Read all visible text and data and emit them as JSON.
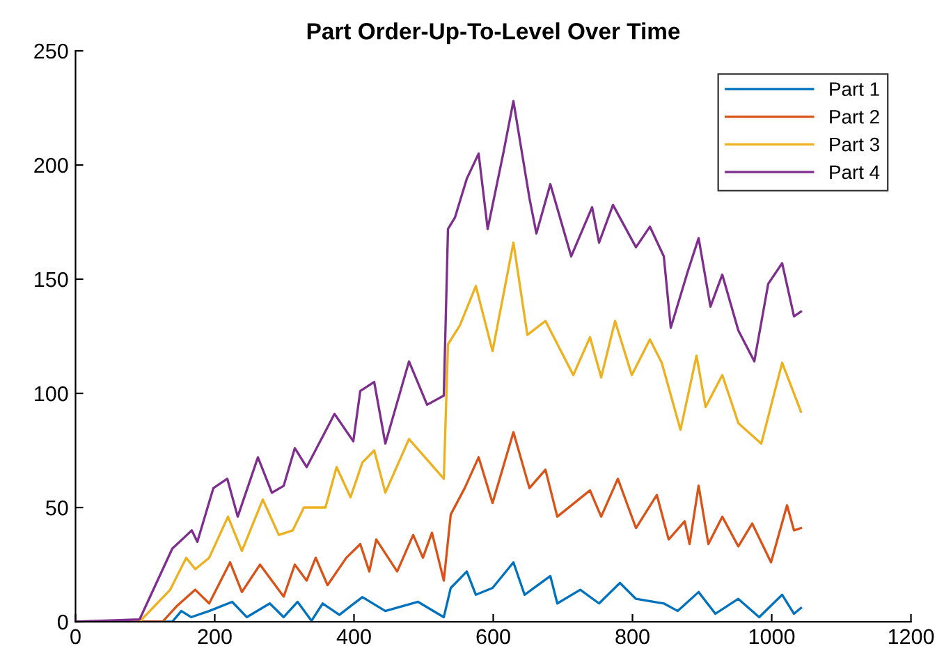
{
  "chart_data": {
    "type": "line",
    "title": "Part Order-Up-To-Level Over Time",
    "xlim": [
      0,
      1200
    ],
    "ylim": [
      0,
      250
    ],
    "xticks": [
      0,
      200,
      400,
      600,
      800,
      1000,
      1200
    ],
    "yticks": [
      0,
      50,
      100,
      150,
      200,
      250
    ],
    "grid": false,
    "legend": "top right",
    "line_style": "solid",
    "marker": "none",
    "series": [
      {
        "name": "Part 1",
        "color": "#0072bd",
        "x": [
          0,
          139,
          152,
          166,
          192,
          225,
          246,
          279,
          299,
          319,
          339,
          355,
          379,
          412,
          445,
          492,
          529,
          539,
          562,
          575,
          599,
          629,
          645,
          682,
          692,
          725,
          752,
          782,
          805,
          845,
          865,
          895,
          919,
          952,
          982,
          1015,
          1032,
          1042
        ],
        "values": [
          0,
          0,
          4.7,
          2,
          4.7,
          8.7,
          2,
          8,
          2,
          8.7,
          0.4,
          8,
          3,
          10.8,
          4.7,
          8.7,
          2,
          14.8,
          22,
          11.8,
          14.8,
          26,
          11.8,
          20,
          8,
          14,
          8,
          17,
          10,
          8,
          4.7,
          13,
          3.5,
          10,
          2,
          11.8,
          3.5,
          6
        ]
      },
      {
        "name": "Part 2",
        "color": "#d95319",
        "x": [
          0,
          125,
          145,
          172,
          192,
          222,
          239,
          265,
          299,
          315,
          332,
          345,
          362,
          389,
          409,
          422,
          432,
          462,
          485,
          499,
          512,
          529,
          539,
          559,
          579,
          599,
          629,
          652,
          675,
          692,
          739,
          755,
          779,
          805,
          835,
          852,
          875,
          882,
          895,
          909,
          929,
          952,
          972,
          999,
          1022,
          1032,
          1042
        ],
        "values": [
          0,
          0,
          6.7,
          14,
          8,
          26,
          13,
          25,
          11,
          25,
          18,
          28,
          16,
          28,
          34,
          22,
          36,
          22,
          38,
          28,
          39,
          18,
          47,
          58.5,
          72,
          52,
          83,
          58.5,
          66.6,
          46,
          57.5,
          46,
          62.6,
          41,
          55.5,
          36,
          44,
          34,
          59.6,
          34,
          46,
          33,
          43,
          26,
          51,
          40,
          41
        ]
      },
      {
        "name": "Part 3",
        "color": "#edb120",
        "x": [
          0,
          92,
          136,
          159,
          172,
          192,
          219,
          239,
          269,
          292,
          312,
          328,
          359,
          375,
          395,
          412,
          429,
          445,
          479,
          502,
          529,
          535,
          552,
          575,
          599,
          629,
          649,
          675,
          715,
          739,
          755,
          775,
          799,
          825,
          842,
          869,
          892,
          905,
          929,
          952,
          985,
          1015,
          1042
        ],
        "values": [
          0,
          0,
          14,
          28,
          23,
          28,
          46,
          31,
          53.5,
          38,
          40,
          50,
          50,
          67.7,
          54.5,
          69.7,
          75,
          56.5,
          80,
          72,
          62.6,
          121.5,
          129.7,
          147,
          118.5,
          166,
          125.6,
          131.7,
          108,
          124.6,
          107,
          131.7,
          108,
          123.6,
          113.4,
          84,
          116.5,
          94,
          108,
          87,
          78,
          113.4,
          92
        ]
      },
      {
        "name": "Part 4",
        "color": "#7e2f8e",
        "x": [
          0,
          92,
          139,
          167,
          175,
          198,
          218,
          233,
          262,
          282,
          299,
          315,
          332,
          372,
          399,
          409,
          429,
          445,
          479,
          505,
          529,
          535,
          545,
          562,
          579,
          592,
          615,
          629,
          652,
          662,
          682,
          712,
          742,
          752,
          772,
          805,
          825,
          845,
          855,
          879,
          895,
          912,
          929,
          952,
          975,
          995,
          1015,
          1032,
          1042
        ],
        "values": [
          0,
          1,
          32,
          40,
          35,
          58.5,
          62.6,
          46,
          72,
          56.5,
          59.5,
          76,
          67.7,
          91,
          79,
          101,
          105,
          78,
          114,
          95,
          99,
          172,
          177,
          194,
          205,
          172,
          206,
          228,
          185.5,
          170,
          191.6,
          160,
          181.5,
          166,
          182.5,
          164,
          173,
          160,
          128.7,
          153,
          168,
          138,
          152,
          127.6,
          114,
          148,
          157,
          133.7,
          135.8
        ]
      }
    ]
  }
}
